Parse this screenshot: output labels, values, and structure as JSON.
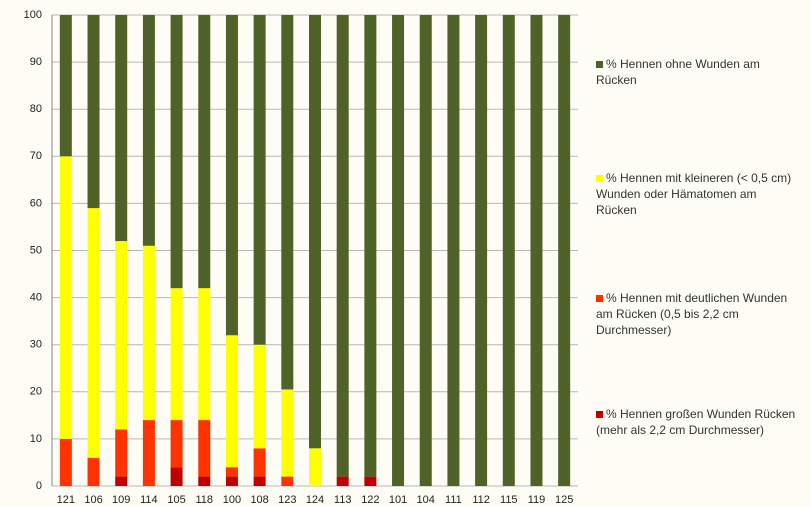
{
  "chart_data": {
    "type": "stacked_bar",
    "categories": [
      "121",
      "106",
      "109",
      "114",
      "105",
      "118",
      "100",
      "108",
      "123",
      "124",
      "113",
      "122",
      "101",
      "104",
      "111",
      "112",
      "115",
      "119",
      "125"
    ],
    "series": [
      {
        "name": "% Hennen großen Wunden Rücken (mehr als 2,2 cm Durchmesser)",
        "color": "#c00000",
        "values": [
          0,
          0,
          2,
          0,
          4,
          2,
          2,
          2,
          0,
          0,
          2,
          2,
          0,
          0,
          0,
          0,
          0,
          0,
          0
        ]
      },
      {
        "name": "% Hennen mit deutlichen Wunden am Rücken (0,5 bis 2,2 cm Durchmesser)",
        "color": "#ff3300",
        "values": [
          10,
          6,
          10,
          14,
          10,
          12,
          2,
          6,
          2,
          0,
          0,
          0,
          0,
          0,
          0,
          0,
          0,
          0,
          0
        ]
      },
      {
        "name": "% Hennen mit kleineren (< 0,5 cm) Wunden oder Hämatomen am Rücken",
        "color": "#ffff00",
        "values": [
          60,
          53,
          40,
          37,
          28,
          28,
          28,
          22,
          18.5,
          8,
          0,
          0,
          0,
          0,
          0,
          0,
          0,
          0,
          0
        ]
      },
      {
        "name": "% Hennen ohne Wunden am Rücken",
        "color": "#4f6228",
        "values": [
          30,
          41,
          48,
          49,
          58,
          58,
          68,
          70,
          79.5,
          92,
          98,
          98,
          100,
          100,
          100,
          100,
          100,
          100,
          100
        ]
      }
    ],
    "ylim": [
      0,
      100
    ],
    "yticks": [
      0,
      10,
      20,
      30,
      40,
      50,
      60,
      70,
      80,
      90,
      100
    ],
    "grid": true,
    "legend": "right"
  }
}
